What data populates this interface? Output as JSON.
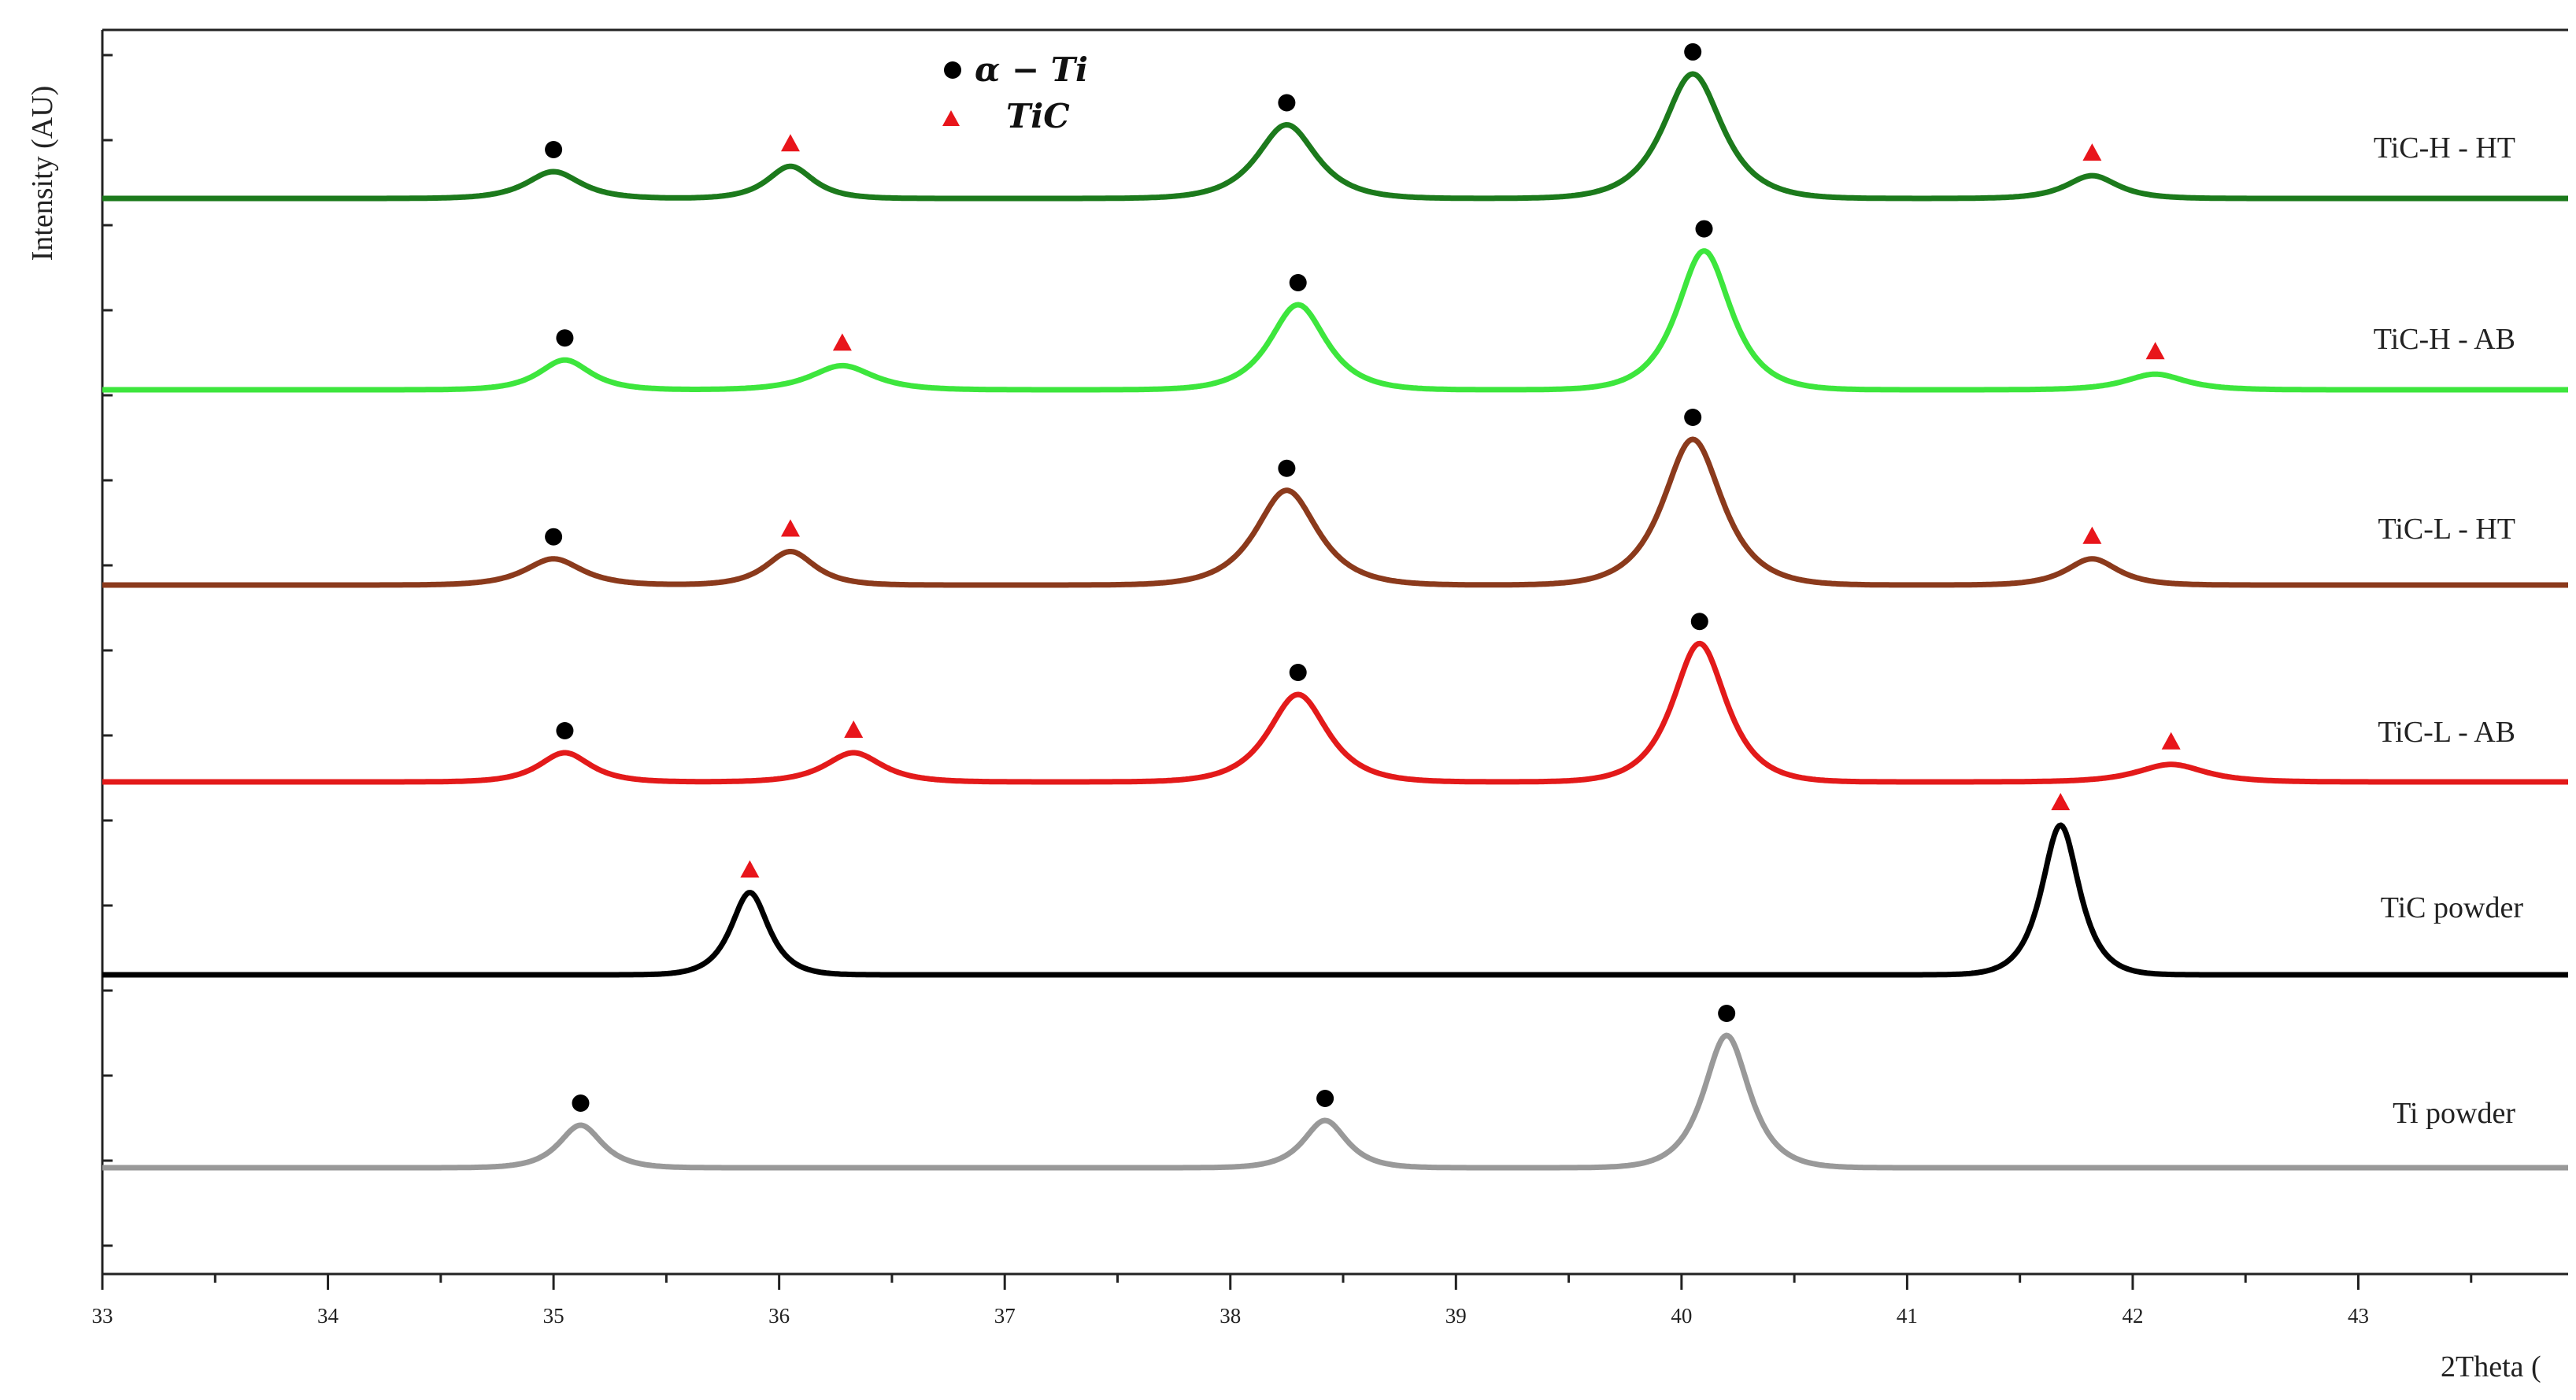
{
  "chart_data": {
    "type": "line",
    "title": "",
    "xlabel": "2Theta (",
    "ylabel": "Intensity (AU)",
    "xlim": [
      33,
      43.93
    ],
    "x_ticks": [
      33,
      34,
      35,
      36,
      37,
      38,
      39,
      40,
      41,
      42,
      43
    ],
    "grid": false,
    "legend": {
      "placement": "top-center",
      "entries": [
        {
          "label": "α − Ti",
          "marker": "circle",
          "color": "#000000"
        },
        {
          "label": "TiC",
          "marker": "triangle",
          "color": "#e8151b"
        }
      ]
    },
    "series": [
      {
        "name": "TiC-H - HT",
        "color": "#1c7a1c",
        "peaks": [
          {
            "x": 35.0,
            "height": 0.2,
            "width": 0.2,
            "marker": "circle"
          },
          {
            "x": 36.05,
            "height": 0.24,
            "width": 0.17,
            "marker": "triangle"
          },
          {
            "x": 38.25,
            "height": 0.55,
            "width": 0.22,
            "marker": "circle"
          },
          {
            "x": 40.05,
            "height": 0.93,
            "width": 0.22,
            "marker": "circle"
          },
          {
            "x": 41.82,
            "height": 0.17,
            "width": 0.19,
            "marker": "triangle"
          }
        ]
      },
      {
        "name": "TiC-H - AB",
        "color": "#3de63d",
        "peaks": [
          {
            "x": 35.05,
            "height": 0.21,
            "width": 0.19,
            "marker": "circle"
          },
          {
            "x": 36.28,
            "height": 0.17,
            "width": 0.23,
            "marker": "triangle"
          },
          {
            "x": 38.3,
            "height": 0.6,
            "width": 0.21,
            "marker": "circle"
          },
          {
            "x": 40.1,
            "height": 0.98,
            "width": 0.2,
            "marker": "circle"
          },
          {
            "x": 42.1,
            "height": 0.11,
            "width": 0.22,
            "marker": "triangle"
          }
        ]
      },
      {
        "name": "TiC-L - HT",
        "color": "#8b3a1c",
        "peaks": [
          {
            "x": 35.0,
            "height": 0.18,
            "width": 0.21,
            "marker": "circle"
          },
          {
            "x": 36.05,
            "height": 0.23,
            "width": 0.18,
            "marker": "triangle"
          },
          {
            "x": 38.25,
            "height": 0.65,
            "width": 0.23,
            "marker": "circle"
          },
          {
            "x": 40.05,
            "height": 1.0,
            "width": 0.22,
            "marker": "circle"
          },
          {
            "x": 41.82,
            "height": 0.18,
            "width": 0.19,
            "marker": "triangle"
          }
        ]
      },
      {
        "name": "TiC-L - AB",
        "color": "#e31a1a",
        "peaks": [
          {
            "x": 35.05,
            "height": 0.2,
            "width": 0.19,
            "marker": "circle"
          },
          {
            "x": 36.33,
            "height": 0.2,
            "width": 0.21,
            "marker": "triangle"
          },
          {
            "x": 38.3,
            "height": 0.6,
            "width": 0.22,
            "marker": "circle"
          },
          {
            "x": 40.08,
            "height": 0.95,
            "width": 0.2,
            "marker": "circle"
          },
          {
            "x": 42.17,
            "height": 0.12,
            "width": 0.25,
            "marker": "triangle"
          }
        ]
      },
      {
        "name": "TiC powder",
        "color": "#000000",
        "peaks": [
          {
            "x": 35.87,
            "height": 0.55,
            "width": 0.14,
            "marker": "triangle"
          },
          {
            "x": 41.68,
            "height": 1.0,
            "width": 0.14,
            "marker": "triangle"
          }
        ]
      },
      {
        "name": "Ti powder",
        "color": "#999999",
        "peaks": [
          {
            "x": 35.12,
            "height": 0.36,
            "width": 0.16,
            "marker": "circle"
          },
          {
            "x": 38.42,
            "height": 0.4,
            "width": 0.16,
            "marker": "circle"
          },
          {
            "x": 40.2,
            "height": 1.12,
            "width": 0.17,
            "marker": "circle"
          }
        ]
      }
    ]
  }
}
